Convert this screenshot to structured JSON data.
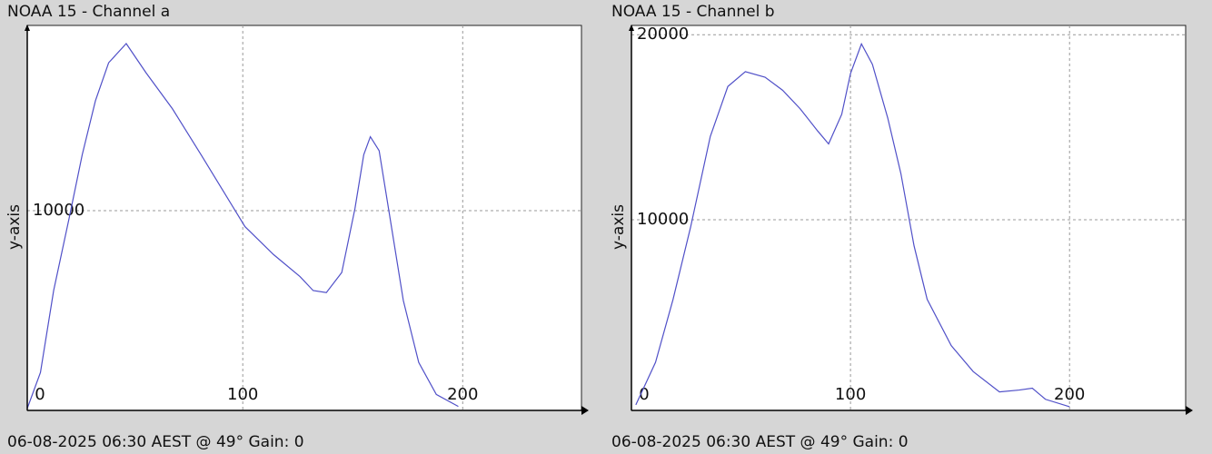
{
  "chart_data": [
    {
      "type": "line",
      "title": "NOAA 15 - Channel a",
      "annotation": "06-08-2025 06:30 AEST @ 49° Gain: 0",
      "y_label": "y-axis",
      "x": [
        2,
        8,
        14,
        21,
        27,
        33,
        39,
        47,
        56,
        68,
        81,
        91,
        101,
        114,
        126,
        132,
        138,
        145,
        151,
        155,
        158,
        162,
        167,
        173,
        180,
        188,
        198
      ],
      "series": [
        {
          "name": "Channel a",
          "color": "#5050c8",
          "values": [
            100,
            1900,
            6000,
            9600,
            12800,
            15500,
            17400,
            18360,
            16900,
            15100,
            12800,
            11000,
            9200,
            7800,
            6700,
            6000,
            5900,
            6900,
            10100,
            12800,
            13700,
            13000,
            9600,
            5500,
            2400,
            800,
            200
          ]
        }
      ],
      "xlim": [
        2,
        254
      ],
      "ylim": [
        0,
        19270
      ],
      "xticks": [
        0,
        100,
        200
      ],
      "yticks": [
        10000
      ],
      "grid": true
    },
    {
      "type": "line",
      "title": "NOAA 15 - Channel b",
      "annotation": "06-08-2025 06:30 AEST @ 49° Gain: 0",
      "y_label": "y-axis",
      "x": [
        2,
        11,
        19,
        27,
        36,
        44,
        52,
        61,
        69,
        77,
        85,
        90,
        96,
        100,
        105,
        110,
        117,
        123,
        129,
        135,
        146,
        156,
        168,
        177,
        183,
        189,
        200
      ],
      "series": [
        {
          "name": "Channel b",
          "color": "#5050c8",
          "values": [
            0,
            2300,
            5700,
            9600,
            14500,
            17200,
            18000,
            17700,
            17000,
            16000,
            14800,
            14100,
            15700,
            17900,
            19500,
            18400,
            15500,
            12500,
            8600,
            5700,
            3200,
            1800,
            700,
            800,
            900,
            300,
            -100
          ]
        }
      ],
      "xlim": [
        0,
        253
      ],
      "ylim": [
        -300,
        20500
      ],
      "xticks": [
        0,
        100,
        200
      ],
      "yticks": [
        10000,
        20000
      ],
      "grid": true
    }
  ]
}
